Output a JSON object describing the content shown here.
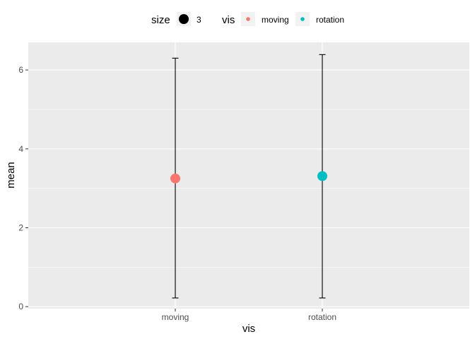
{
  "chart_data": {
    "type": "scatter",
    "subtype": "point-with-errorbars",
    "categories": [
      "moving",
      "rotation"
    ],
    "points": [
      {
        "category": "moving",
        "mean": 3.25,
        "ymin": 0.22,
        "ymax": 6.3,
        "color": "#F8766D"
      },
      {
        "category": "rotation",
        "mean": 3.31,
        "ymin": 0.22,
        "ymax": 6.39,
        "color": "#00BFC4"
      }
    ],
    "xlabel": "vis",
    "ylabel": "mean",
    "ylim": [
      -0.05,
      6.7
    ],
    "yticks": [
      0,
      2,
      4,
      6
    ],
    "grid": true,
    "background": "#EBEBEB",
    "legend": {
      "position": "top",
      "groups": [
        {
          "title": "size",
          "entries": [
            {
              "label": "3",
              "color": "#000000"
            }
          ]
        },
        {
          "title": "vis",
          "entries": [
            {
              "label": "moving",
              "color": "#F8766D"
            },
            {
              "label": "rotation",
              "color": "#00BFC4"
            }
          ]
        }
      ]
    }
  }
}
